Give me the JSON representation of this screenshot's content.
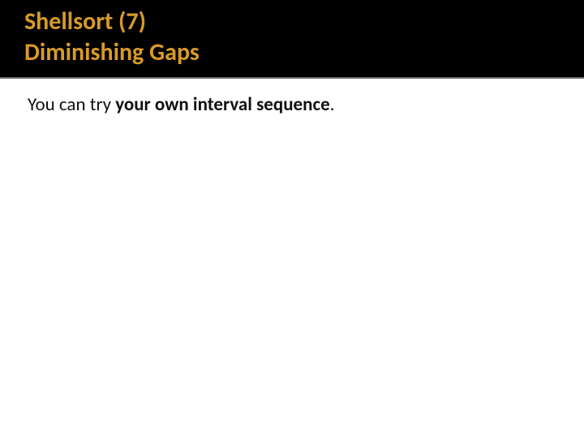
{
  "header": {
    "bg_color": "#000000",
    "border_color": "#6b6b6b",
    "title_color": "#d89a2a",
    "line1": "Shellsort (7)",
    "line2": "Diminishing Gaps"
  },
  "content": {
    "text_color": "#111111",
    "line1_regular": "You can try ",
    "line1_bold": "your own interval sequence",
    "line1_tail": "."
  }
}
